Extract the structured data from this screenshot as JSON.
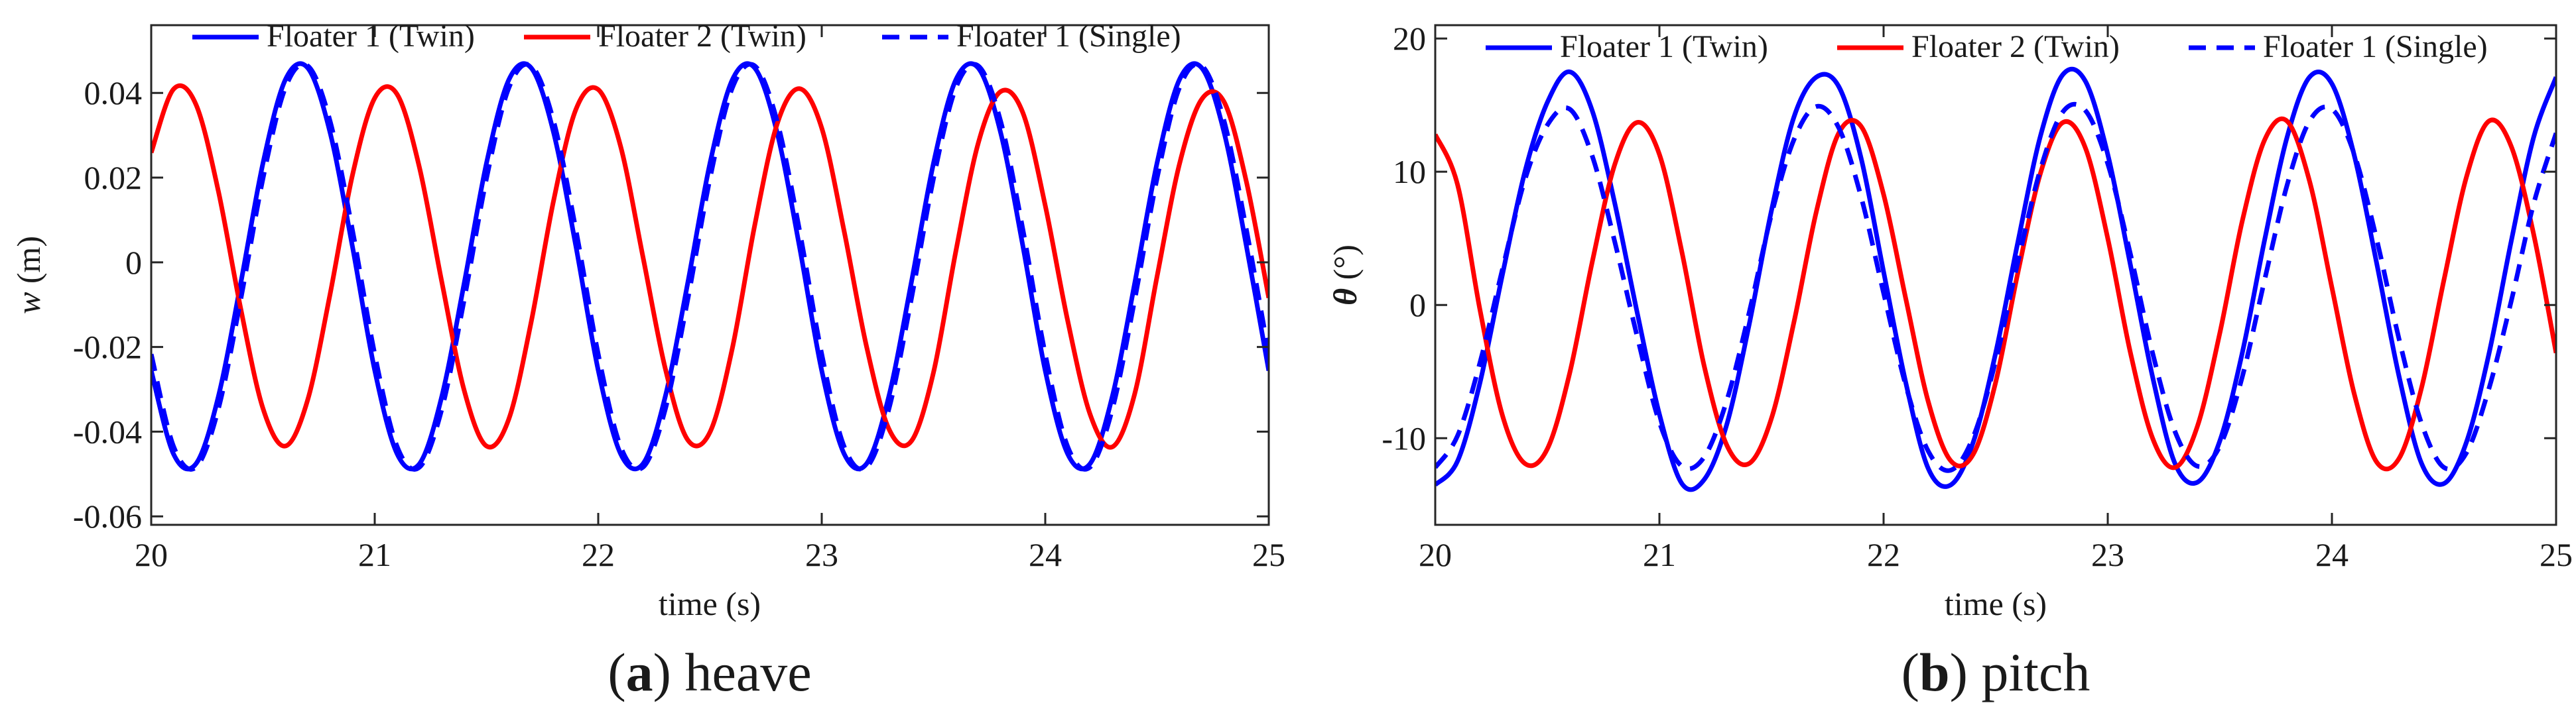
{
  "chart_data": [
    {
      "type": "line",
      "xlabel": "time (s)",
      "ylabel_var": "w",
      "ylabel_unit": " (m)",
      "xlim": [
        20,
        25
      ],
      "ylim": [
        -0.062,
        0.056
      ],
      "xticks": [
        20,
        21,
        22,
        23,
        24,
        25
      ],
      "xtick_labels": [
        "20",
        "21",
        "22",
        "23",
        "24",
        "25"
      ],
      "yticks": [
        -0.06,
        -0.04,
        -0.02,
        0,
        0.02,
        0.04
      ],
      "ytick_labels": [
        "-0.06",
        "-0.04",
        "-0.02",
        "0",
        "0.02",
        "0.04"
      ],
      "legend_position": "top",
      "caption_letter": "a",
      "caption_text": " heave",
      "series": [
        {
          "name": "Floater 1 (Twin)",
          "color": "#0000ff",
          "dash": "solid",
          "x": [
            20.0,
            20.1,
            20.2,
            20.3,
            20.4,
            20.5,
            20.6,
            20.7,
            20.8,
            20.9,
            21.0,
            21.1,
            21.2,
            21.3,
            21.4,
            21.5,
            21.6,
            21.7,
            21.8,
            21.9,
            22.0,
            22.1,
            22.2,
            22.3,
            22.4,
            22.5,
            22.6,
            22.7,
            22.8,
            22.9,
            23.0,
            23.1,
            23.2,
            23.3,
            23.4,
            23.5,
            23.6,
            23.7,
            23.8,
            23.9,
            24.0,
            24.1,
            24.2,
            24.3,
            24.4,
            24.5,
            24.6,
            24.7,
            24.8,
            24.9,
            25.0
          ],
          "y": [
            -0.0256,
            -0.0453,
            -0.0476,
            -0.0318,
            -0.0051,
            0.0234,
            0.0431,
            0.0459,
            0.0307,
            0.0038,
            -0.0255,
            -0.0452,
            -0.0476,
            -0.0317,
            -0.005,
            0.0234,
            0.0431,
            0.0459,
            0.0307,
            0.0038,
            -0.0255,
            -0.0452,
            -0.0476,
            -0.0317,
            -0.005,
            0.0234,
            0.0431,
            0.0459,
            0.0307,
            0.0038,
            -0.0256,
            -0.0452,
            -0.0476,
            -0.0317,
            -0.005,
            0.0234,
            0.0431,
            0.0459,
            0.0307,
            0.0038,
            -0.0256,
            -0.0452,
            -0.0476,
            -0.0317,
            -0.005,
            0.0234,
            0.0431,
            0.0459,
            0.0307,
            0.0038,
            -0.0256
          ]
        },
        {
          "name": "Floater 2 (Twin)",
          "color": "#ff0000",
          "dash": "solid",
          "x": [
            20.0,
            20.1,
            20.2,
            20.3,
            20.4,
            20.5,
            20.6,
            20.7,
            20.8,
            20.9,
            21.0,
            21.1,
            21.2,
            21.3,
            21.4,
            21.5,
            21.6,
            21.7,
            21.8,
            21.9,
            22.0,
            22.1,
            22.2,
            22.3,
            22.4,
            22.5,
            22.6,
            22.7,
            22.8,
            22.9,
            23.0,
            23.1,
            23.2,
            23.3,
            23.4,
            23.5,
            23.6,
            23.7,
            23.8,
            23.9,
            24.0,
            24.1,
            24.2,
            24.3,
            24.4,
            24.5,
            24.6,
            24.7,
            24.8,
            24.9,
            25.0
          ],
          "y": [
            0.0259,
            0.0409,
            0.0373,
            0.0169,
            -0.0108,
            -0.0345,
            -0.0434,
            -0.0325,
            -0.0076,
            0.0205,
            0.0388,
            0.0397,
            0.0224,
            -0.0046,
            -0.0302,
            -0.0434,
            -0.037,
            -0.0141,
            0.0145,
            0.0361,
            0.0408,
            0.0274,
            0.0013,
            -0.0251,
            -0.0419,
            -0.0401,
            -0.0203,
            0.0087,
            0.0326,
            0.041,
            0.0317,
            0.0074,
            -0.0198,
            -0.0393,
            -0.0423,
            -0.026,
            0.0026,
            0.0281,
            0.0403,
            0.0353,
            0.0134,
            -0.0137,
            -0.0358,
            -0.0436,
            -0.0311,
            -0.0034,
            0.0231,
            0.0385,
            0.0379,
            0.019,
            -0.0084
          ]
        },
        {
          "name": "Floater 1 (Single)",
          "color": "#0000ff",
          "dash": "dashed",
          "x": [
            20.0,
            20.1,
            20.2,
            20.3,
            20.4,
            20.5,
            20.6,
            20.7,
            20.8,
            20.9,
            21.0,
            21.1,
            21.2,
            21.3,
            21.4,
            21.5,
            21.6,
            21.7,
            21.8,
            21.9,
            22.0,
            22.1,
            22.2,
            22.3,
            22.4,
            22.5,
            22.6,
            22.7,
            22.8,
            22.9,
            23.0,
            23.1,
            23.2,
            23.3,
            23.4,
            23.5,
            23.6,
            23.7,
            23.8,
            23.9,
            24.0,
            24.1,
            24.2,
            24.3,
            24.4,
            24.5,
            24.6,
            24.7,
            24.8,
            24.9,
            25.0
          ],
          "y": [
            -0.0217,
            -0.0435,
            -0.0484,
            -0.0347,
            -0.0089,
            0.0198,
            0.0412,
            0.0464,
            0.0334,
            0.0077,
            -0.0217,
            -0.0435,
            -0.0484,
            -0.0347,
            -0.0089,
            0.0198,
            0.0412,
            0.0464,
            0.0334,
            0.0077,
            -0.0217,
            -0.0435,
            -0.0484,
            -0.0347,
            -0.0089,
            0.0198,
            0.0412,
            0.0464,
            0.0334,
            0.0077,
            -0.0217,
            -0.0435,
            -0.0484,
            -0.0347,
            -0.0089,
            0.0198,
            0.0412,
            0.0464,
            0.0334,
            0.0077,
            -0.0217,
            -0.0435,
            -0.0484,
            -0.0347,
            -0.0089,
            0.0198,
            0.0412,
            0.0464,
            0.0334,
            0.0077,
            -0.0217
          ]
        }
      ]
    },
    {
      "type": "line",
      "xlabel": "time (s)",
      "ylabel_var": "θ",
      "ylabel_unit": " (°)",
      "xlim": [
        20,
        25
      ],
      "ylim": [
        -16.5,
        21
      ],
      "xticks": [
        20,
        21,
        22,
        23,
        24,
        25
      ],
      "xtick_labels": [
        "20",
        "21",
        "22",
        "23",
        "24",
        "25"
      ],
      "yticks": [
        -10,
        0,
        10,
        20
      ],
      "ytick_labels": [
        "-10",
        "0",
        "10",
        "20"
      ],
      "legend_position": "top",
      "caption_letter": "b",
      "caption_text": " pitch",
      "series": [
        {
          "name": "Floater 1 (Twin)",
          "color": "#0000ff",
          "dash": "solid",
          "x": [
            20.0,
            20.1,
            20.2,
            20.3,
            20.4,
            20.5,
            20.6,
            20.7,
            20.8,
            20.9,
            21.0,
            21.1,
            21.2,
            21.3,
            21.4,
            21.5,
            21.6,
            21.7,
            21.8,
            21.9,
            22.0,
            22.1,
            22.2,
            22.3,
            22.4,
            22.5,
            22.6,
            22.7,
            22.8,
            22.9,
            23.0,
            23.1,
            23.2,
            23.3,
            23.4,
            23.5,
            23.6,
            23.7,
            23.8,
            23.9,
            24.0,
            24.1,
            24.2,
            24.3,
            24.4,
            24.5,
            24.6,
            24.7,
            24.8,
            24.9,
            25.0
          ],
          "y": [
            -13.5,
            -11.7,
            -5.8,
            2.3,
            10.0,
            15.2,
            17.5,
            14.6,
            7.7,
            -0.5,
            -8.2,
            -13.4,
            -13.1,
            -9.0,
            -1.5,
            7.1,
            14.1,
            17.1,
            16.4,
            11.0,
            2.5,
            -5.9,
            -12.3,
            -13.5,
            -10.3,
            -3.6,
            4.8,
            12.7,
            17.3,
            16.8,
            11.3,
            3.1,
            -5.4,
            -11.9,
            -13.3,
            -10.2,
            -3.6,
            4.9,
            12.6,
            17.1,
            16.6,
            11.2,
            3.1,
            -5.4,
            -11.9,
            -13.4,
            -10.3,
            -3.7,
            4.8,
            12.6,
            17.1
          ]
        },
        {
          "name": "Floater 2 (Twin)",
          "color": "#ff0000",
          "dash": "solid",
          "x": [
            20.0,
            20.1,
            20.2,
            20.3,
            20.4,
            20.5,
            20.6,
            20.7,
            20.8,
            20.9,
            21.0,
            21.1,
            21.2,
            21.3,
            21.4,
            21.5,
            21.6,
            21.7,
            21.8,
            21.9,
            22.0,
            22.1,
            22.2,
            22.3,
            22.4,
            22.5,
            22.6,
            22.7,
            22.8,
            22.9,
            23.0,
            23.1,
            23.2,
            23.3,
            23.4,
            23.5,
            23.6,
            23.7,
            23.8,
            23.9,
            24.0,
            24.1,
            24.2,
            24.3,
            24.4,
            24.5,
            24.6,
            24.7,
            24.8,
            24.9,
            25.0
          ],
          "y": [
            12.8,
            9.0,
            -0.4,
            -8.3,
            -11.9,
            -10.8,
            -5.1,
            3.2,
            10.5,
            13.7,
            11.3,
            4.0,
            -4.6,
            -10.5,
            -11.9,
            -8.5,
            -1.3,
            7.0,
            12.9,
            13.4,
            8.3,
            0.4,
            -7.3,
            -11.7,
            -11.2,
            -5.8,
            2.5,
            9.9,
            13.7,
            11.8,
            5.0,
            -3.5,
            -10.0,
            -12.2,
            -9.1,
            -2.1,
            6.3,
            12.4,
            13.8,
            9.3,
            1.3,
            -6.7,
            -11.8,
            -11.5,
            -6.2,
            1.9,
            9.6,
            13.8,
            11.9,
            5.3,
            -3.6
          ]
        },
        {
          "name": "Floater 1 (Single)",
          "color": "#0000ff",
          "dash": "dashed",
          "x": [
            20.0,
            20.1,
            20.2,
            20.3,
            20.4,
            20.5,
            20.6,
            20.7,
            20.8,
            20.9,
            21.0,
            21.1,
            21.2,
            21.3,
            21.4,
            21.5,
            21.6,
            21.7,
            21.8,
            21.9,
            22.0,
            22.1,
            22.2,
            22.3,
            22.4,
            22.5,
            22.6,
            22.7,
            22.8,
            22.9,
            23.0,
            23.1,
            23.2,
            23.3,
            23.4,
            23.5,
            23.6,
            23.7,
            23.8,
            23.9,
            24.0,
            24.1,
            24.2,
            24.3,
            24.4,
            24.5,
            24.6,
            24.7,
            24.8,
            24.9,
            25.0
          ],
          "y": [
            -12.2,
            -9.8,
            -4.3,
            2.7,
            9.4,
            13.5,
            14.7,
            11.2,
            4.8,
            -2.3,
            -8.8,
            -12.1,
            -11.4,
            -7.2,
            -0.6,
            6.8,
            12.4,
            14.9,
            13.3,
            8.1,
            0.9,
            -6.1,
            -11.0,
            -12.4,
            -9.9,
            -4.2,
            3.3,
            10.2,
            14.5,
            14.6,
            10.6,
            3.9,
            -3.6,
            -9.5,
            -12.1,
            -10.6,
            -5.4,
            1.9,
            9.0,
            13.8,
            14.7,
            11.3,
            4.9,
            -2.6,
            -8.9,
            -12.2,
            -11.1,
            -6.3,
            0.3,
            7.6,
            12.9
          ]
        }
      ]
    }
  ]
}
